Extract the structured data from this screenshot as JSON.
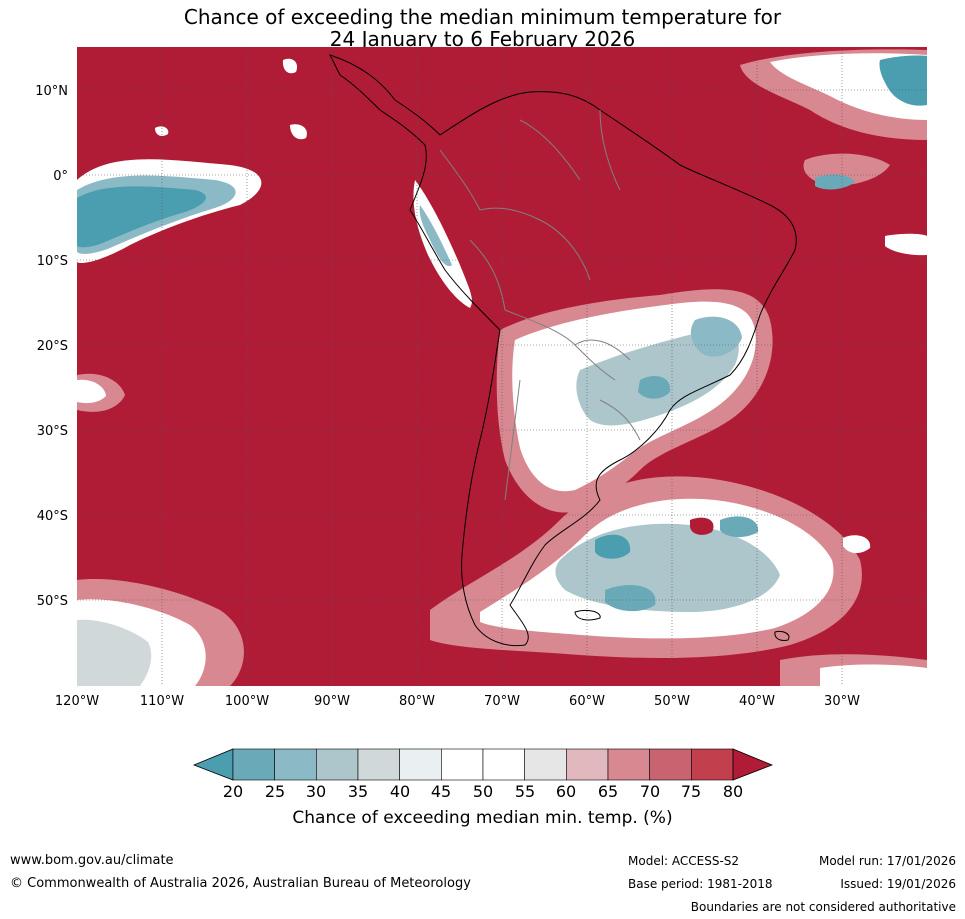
{
  "title": {
    "line1": "Chance of exceeding the median minimum temperature for",
    "line2": "24 January to 6 February 2026"
  },
  "map": {
    "lat_labels": [
      "10°N",
      "0°",
      "10°S",
      "20°S",
      "30°S",
      "40°S",
      "50°S"
    ],
    "lon_labels": [
      "120°W",
      "110°W",
      "100°W",
      "90°W",
      "80°W",
      "70°W",
      "60°W",
      "50°W",
      "40°W",
      "30°W"
    ],
    "background_color": "#b01c36"
  },
  "colorbar": {
    "title": "Chance of exceeding median min. temp. (%)",
    "ticks": [
      "20",
      "25",
      "30",
      "35",
      "40",
      "45",
      "50",
      "55",
      "60",
      "65",
      "70",
      "75",
      "80"
    ],
    "colors": [
      "#4a9eb0",
      "#6aaab8",
      "#8bbac6",
      "#adc6cc",
      "#d0d8da",
      "#eaf0f2",
      "#ffffff",
      "#ffffff",
      "#e6e6e6",
      "#e0b8be",
      "#d88890",
      "#c86470",
      "#c2404e",
      "#b01c36"
    ]
  },
  "footer": {
    "website": "www.bom.gov.au/climate",
    "copyright": "© Commonwealth of Australia 2026, Australian Bureau of Meteorology",
    "model": "Model: ACCESS-S2",
    "base_period": "Base period: 1981-2018",
    "model_run": "Model run: 17/01/2026",
    "issued": "Issued: 19/01/2026",
    "disclaimer": "Boundaries are not considered authoritative"
  }
}
